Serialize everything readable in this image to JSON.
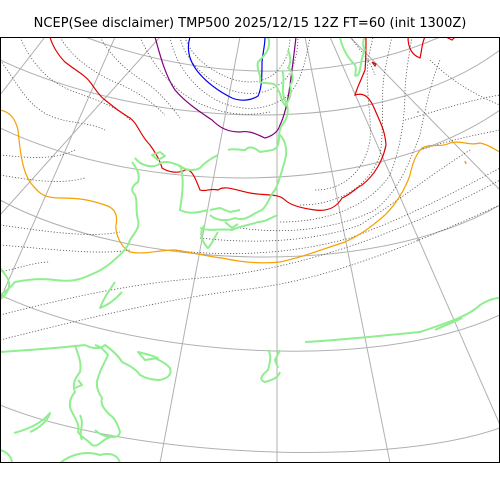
{
  "title": "NCEP(See disclaimer) TMP500 2025/12/15 12Z FT=60 (init 1300Z)",
  "colors": {
    "coast": "#90ee90",
    "graticule": "#b0b0b0",
    "isotherm_dotted": "#555555",
    "contour_orange": "#f5a000",
    "contour_red": "#e00000",
    "contour_purple": "#800080",
    "contour_blue": "#0000ee",
    "frame": "#000000"
  }
}
